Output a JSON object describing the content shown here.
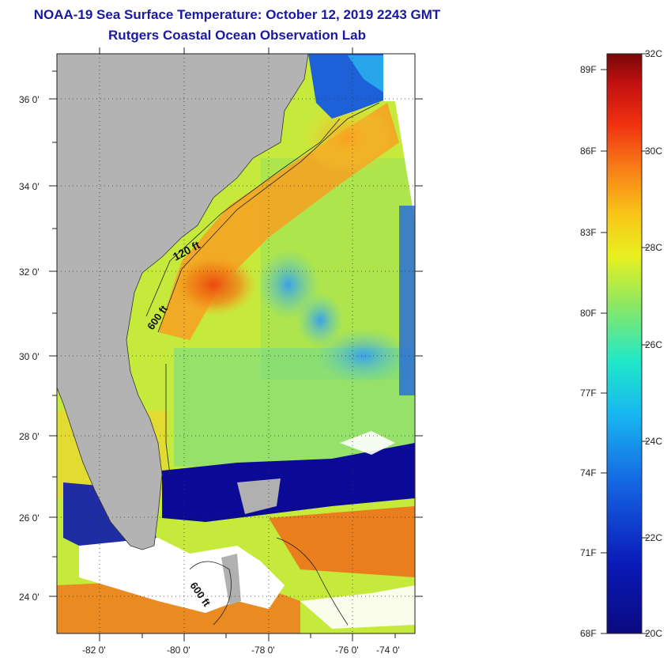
{
  "header": {
    "title": "NOAA-19 Sea Surface Temperature:  October 12, 2019 2243 GMT",
    "subtitle": "Rutgers Coastal Ocean Observation Lab"
  },
  "map": {
    "lon_labels": [
      "-82 0'",
      "-80 0'",
      "-78 0'",
      "-76 0'",
      "-74 0'"
    ],
    "lat_labels": [
      "36 0'",
      "34 0'",
      "32 0'",
      "30 0'",
      "28 0'",
      "26 0'",
      "24 0'"
    ],
    "contour_labels": [
      "120 ft",
      "600 ft",
      "600 ft"
    ]
  },
  "colorbar": {
    "fahrenheit": [
      "89F",
      "86F",
      "83F",
      "80F",
      "77F",
      "74F",
      "71F",
      "68F"
    ],
    "celsius": [
      "32C",
      "30C",
      "28C",
      "26C",
      "24C",
      "22C",
      "20C"
    ]
  }
}
